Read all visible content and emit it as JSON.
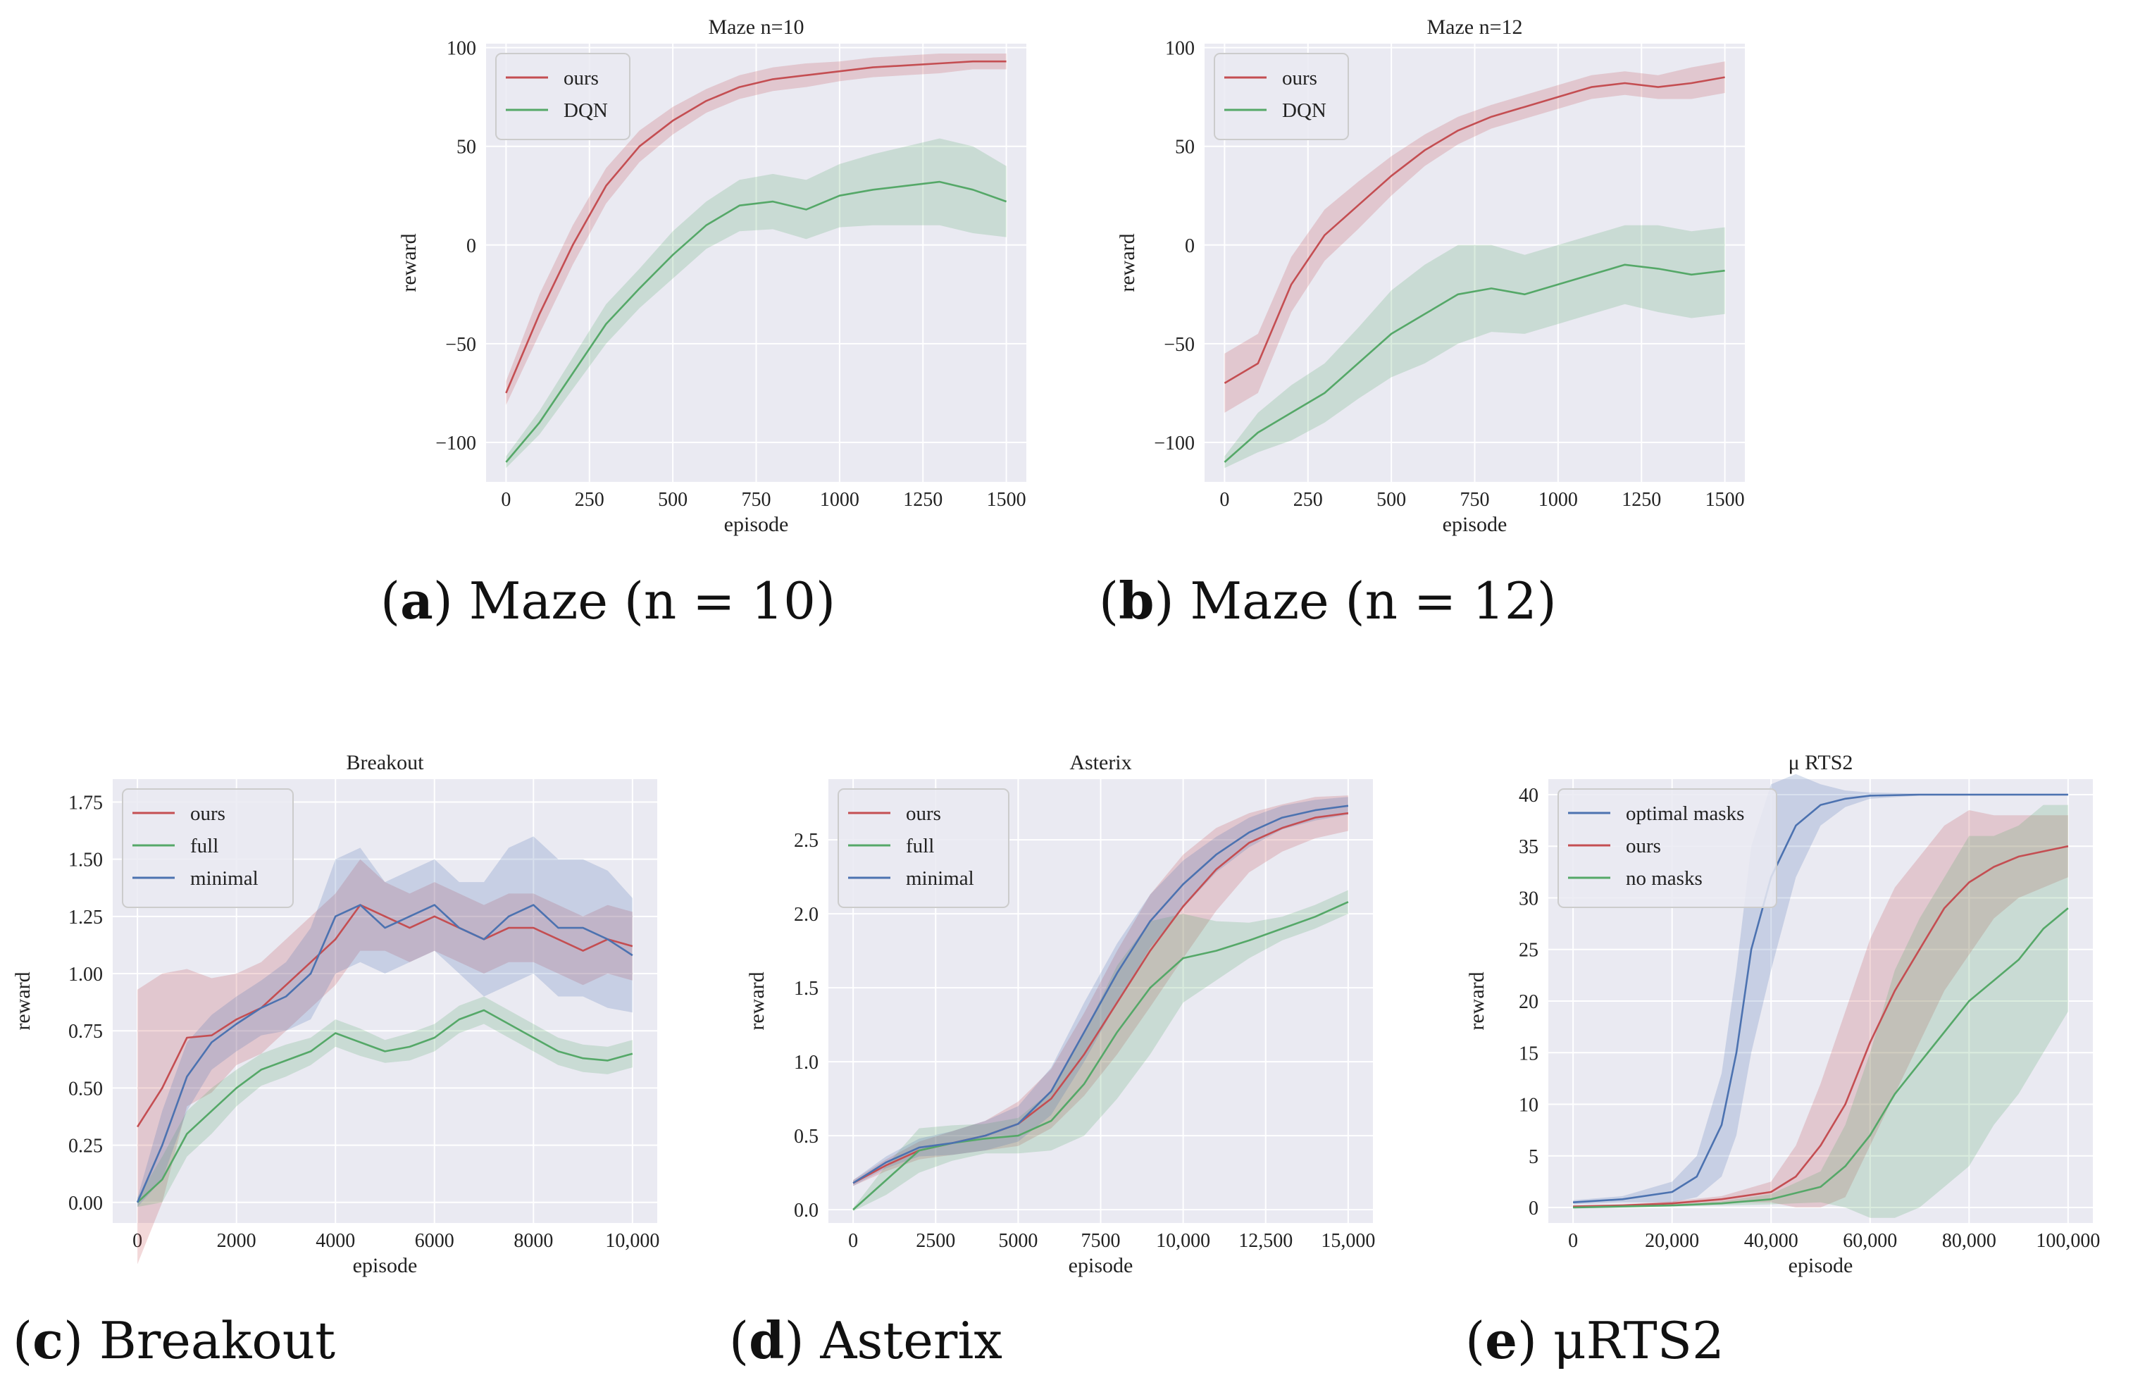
{
  "figure": {
    "captions": [
      {
        "letter": "a",
        "text": "Maze (n = 10)"
      },
      {
        "letter": "b",
        "text": "Maze (n = 12)"
      },
      {
        "letter": "c",
        "text": "Breakout"
      },
      {
        "letter": "d",
        "text": "Asterix"
      },
      {
        "letter": "e",
        "text": "μRTS2"
      }
    ]
  },
  "colors": {
    "red": "#c44e52",
    "green": "#55a868",
    "blue": "#4c72b0",
    "plot_bg": "#eaeaf2",
    "grid": "#ffffff"
  },
  "chart_data": [
    {
      "type": "line",
      "title": "Maze  n=10",
      "xlabel": "episode",
      "ylabel": "reward",
      "xlim": [
        -60,
        1560
      ],
      "ylim": [
        -120,
        102
      ],
      "xticks": [
        0,
        250,
        500,
        750,
        1000,
        1250,
        1500
      ],
      "xtick_labels": [
        "0",
        "250",
        "500",
        "750",
        "1000",
        "1250",
        "1500"
      ],
      "yticks": [
        -100,
        -50,
        0,
        50,
        100
      ],
      "ytick_labels": [
        "−100",
        "−50",
        "0",
        "50",
        "100"
      ],
      "legend": "top-left",
      "series": [
        {
          "name": "ours",
          "color": "red",
          "x": [
            0,
            100,
            200,
            300,
            400,
            500,
            600,
            700,
            800,
            900,
            1000,
            1100,
            1200,
            1300,
            1400,
            1500
          ],
          "values": [
            -75,
            -35,
            0,
            30,
            50,
            63,
            73,
            80,
            84,
            86,
            88,
            90,
            91,
            92,
            93,
            93
          ],
          "band": [
            6,
            10,
            10,
            9,
            8,
            7,
            6,
            6,
            6,
            6,
            5,
            5,
            5,
            5,
            4,
            4
          ]
        },
        {
          "name": "DQN",
          "color": "green",
          "x": [
            0,
            100,
            200,
            300,
            400,
            500,
            600,
            700,
            800,
            900,
            1000,
            1100,
            1200,
            1300,
            1400,
            1500
          ],
          "values": [
            -110,
            -90,
            -65,
            -40,
            -22,
            -5,
            10,
            20,
            22,
            18,
            25,
            28,
            30,
            32,
            28,
            22
          ],
          "band": [
            3,
            6,
            8,
            10,
            10,
            12,
            12,
            13,
            14,
            15,
            16,
            18,
            20,
            22,
            22,
            18
          ]
        }
      ]
    },
    {
      "type": "line",
      "title": "Maze  n=12",
      "xlabel": "episode",
      "ylabel": "reward",
      "xlim": [
        -60,
        1560
      ],
      "ylim": [
        -120,
        102
      ],
      "xticks": [
        0,
        250,
        500,
        750,
        1000,
        1250,
        1500
      ],
      "xtick_labels": [
        "0",
        "250",
        "500",
        "750",
        "1000",
        "1250",
        "1500"
      ],
      "yticks": [
        -100,
        -50,
        0,
        50,
        100
      ],
      "ytick_labels": [
        "−100",
        "−50",
        "0",
        "50",
        "100"
      ],
      "legend": "top-left",
      "series": [
        {
          "name": "ours",
          "color": "red",
          "x": [
            0,
            100,
            200,
            300,
            400,
            500,
            600,
            700,
            800,
            900,
            1000,
            1100,
            1200,
            1300,
            1400,
            1500
          ],
          "values": [
            -70,
            -60,
            -20,
            5,
            20,
            35,
            48,
            58,
            65,
            70,
            75,
            80,
            82,
            80,
            82,
            85
          ],
          "band": [
            15,
            15,
            14,
            13,
            12,
            10,
            8,
            7,
            6,
            6,
            6,
            6,
            6,
            6,
            8,
            8
          ]
        },
        {
          "name": "DQN",
          "color": "green",
          "x": [
            0,
            100,
            200,
            300,
            400,
            500,
            600,
            700,
            800,
            900,
            1000,
            1100,
            1200,
            1300,
            1400,
            1500
          ],
          "values": [
            -110,
            -95,
            -85,
            -75,
            -60,
            -45,
            -35,
            -25,
            -22,
            -25,
            -20,
            -15,
            -10,
            -12,
            -15,
            -13
          ],
          "band": [
            3,
            10,
            14,
            15,
            18,
            22,
            25,
            25,
            22,
            20,
            20,
            20,
            20,
            22,
            22,
            22
          ]
        }
      ]
    },
    {
      "type": "line",
      "title": "Breakout",
      "xlabel": "episode",
      "ylabel": "reward",
      "xlim": [
        -500,
        10500
      ],
      "ylim": [
        -0.09,
        1.85
      ],
      "xticks": [
        0,
        2000,
        4000,
        6000,
        8000,
        10000
      ],
      "xtick_labels": [
        "0",
        "2000",
        "4000",
        "6000",
        "8000",
        "10,000"
      ],
      "yticks": [
        0,
        0.25,
        0.5,
        0.75,
        1.0,
        1.25,
        1.5,
        1.75
      ],
      "ytick_labels": [
        "0.00",
        "0.25",
        "0.50",
        "0.75",
        "1.00",
        "1.25",
        "1.50",
        "1.75"
      ],
      "legend": "top-left",
      "series": [
        {
          "name": "ours",
          "color": "red",
          "x": [
            0,
            500,
            1000,
            1500,
            2000,
            2500,
            3000,
            3500,
            4000,
            4500,
            5000,
            5500,
            6000,
            6500,
            7000,
            7500,
            8000,
            8500,
            9000,
            9500,
            10000
          ],
          "values": [
            0.33,
            0.5,
            0.72,
            0.73,
            0.8,
            0.85,
            0.95,
            1.05,
            1.15,
            1.3,
            1.25,
            1.2,
            1.25,
            1.2,
            1.15,
            1.2,
            1.2,
            1.15,
            1.1,
            1.15,
            1.12
          ],
          "band": [
            0.6,
            0.5,
            0.3,
            0.25,
            0.2,
            0.2,
            0.2,
            0.2,
            0.2,
            0.2,
            0.15,
            0.15,
            0.15,
            0.15,
            0.15,
            0.15,
            0.15,
            0.15,
            0.15,
            0.15,
            0.15
          ]
        },
        {
          "name": "full",
          "color": "green",
          "x": [
            0,
            500,
            1000,
            1500,
            2000,
            2500,
            3000,
            3500,
            4000,
            4500,
            5000,
            5500,
            6000,
            6500,
            7000,
            7500,
            8000,
            8500,
            9000,
            9500,
            10000
          ],
          "values": [
            0.0,
            0.1,
            0.3,
            0.4,
            0.5,
            0.58,
            0.62,
            0.66,
            0.74,
            0.7,
            0.66,
            0.68,
            0.72,
            0.8,
            0.84,
            0.78,
            0.72,
            0.66,
            0.63,
            0.62,
            0.65
          ],
          "band": [
            0.02,
            0.1,
            0.1,
            0.1,
            0.08,
            0.07,
            0.07,
            0.06,
            0.06,
            0.06,
            0.05,
            0.06,
            0.06,
            0.06,
            0.06,
            0.06,
            0.06,
            0.06,
            0.06,
            0.06,
            0.06
          ]
        },
        {
          "name": "minimal",
          "color": "blue",
          "x": [
            0,
            500,
            1000,
            1500,
            2000,
            2500,
            3000,
            3500,
            4000,
            4500,
            5000,
            5500,
            6000,
            6500,
            7000,
            7500,
            8000,
            8500,
            9000,
            9500,
            10000
          ],
          "values": [
            0.0,
            0.25,
            0.55,
            0.7,
            0.78,
            0.85,
            0.9,
            1.0,
            1.25,
            1.3,
            1.2,
            1.25,
            1.3,
            1.2,
            1.15,
            1.25,
            1.3,
            1.2,
            1.2,
            1.15,
            1.08
          ],
          "band": [
            0.02,
            0.15,
            0.15,
            0.12,
            0.12,
            0.12,
            0.15,
            0.2,
            0.25,
            0.25,
            0.2,
            0.2,
            0.2,
            0.2,
            0.25,
            0.3,
            0.3,
            0.3,
            0.3,
            0.3,
            0.25
          ]
        }
      ]
    },
    {
      "type": "line",
      "title": "Asterix",
      "xlabel": "episode",
      "ylabel": "reward",
      "xlim": [
        -750,
        15750
      ],
      "ylim": [
        -0.09,
        2.91
      ],
      "xticks": [
        0,
        2500,
        5000,
        7500,
        10000,
        12500,
        15000
      ],
      "xtick_labels": [
        "0",
        "2500",
        "5000",
        "7500",
        "10,000",
        "12,500",
        "15,000"
      ],
      "yticks": [
        0,
        0.5,
        1.0,
        1.5,
        2.0,
        2.5
      ],
      "ytick_labels": [
        "0.0",
        "0.5",
        "1.0",
        "1.5",
        "2.0",
        "2.5"
      ],
      "legend": "top-left",
      "series": [
        {
          "name": "ours",
          "color": "red",
          "x": [
            0,
            1000,
            2000,
            3000,
            4000,
            5000,
            6000,
            7000,
            8000,
            9000,
            10000,
            11000,
            12000,
            13000,
            14000,
            15000
          ],
          "values": [
            0.18,
            0.3,
            0.4,
            0.45,
            0.5,
            0.58,
            0.75,
            1.05,
            1.4,
            1.75,
            2.05,
            2.3,
            2.48,
            2.58,
            2.65,
            2.68
          ],
          "band": [
            0.02,
            0.04,
            0.06,
            0.08,
            0.1,
            0.15,
            0.2,
            0.28,
            0.35,
            0.38,
            0.35,
            0.28,
            0.2,
            0.16,
            0.14,
            0.12
          ]
        },
        {
          "name": "full",
          "color": "green",
          "x": [
            0,
            1000,
            2000,
            3000,
            4000,
            5000,
            6000,
            7000,
            8000,
            9000,
            10000,
            11000,
            12000,
            13000,
            14000,
            15000
          ],
          "values": [
            0.0,
            0.2,
            0.4,
            0.45,
            0.48,
            0.5,
            0.6,
            0.85,
            1.2,
            1.5,
            1.7,
            1.75,
            1.82,
            1.9,
            1.98,
            2.08
          ],
          "band": [
            0.01,
            0.1,
            0.15,
            0.12,
            0.1,
            0.12,
            0.2,
            0.35,
            0.45,
            0.45,
            0.3,
            0.2,
            0.12,
            0.08,
            0.08,
            0.08
          ]
        },
        {
          "name": "minimal",
          "color": "blue",
          "x": [
            0,
            1000,
            2000,
            3000,
            4000,
            5000,
            6000,
            7000,
            8000,
            9000,
            10000,
            11000,
            12000,
            13000,
            14000,
            15000
          ],
          "values": [
            0.18,
            0.32,
            0.42,
            0.45,
            0.5,
            0.58,
            0.8,
            1.2,
            1.6,
            1.95,
            2.2,
            2.4,
            2.55,
            2.65,
            2.7,
            2.73
          ],
          "band": [
            0.02,
            0.04,
            0.06,
            0.08,
            0.1,
            0.12,
            0.16,
            0.2,
            0.2,
            0.18,
            0.16,
            0.12,
            0.1,
            0.08,
            0.07,
            0.06
          ]
        }
      ]
    },
    {
      "type": "line",
      "title": "μ RTS2",
      "xlabel": "episode",
      "ylabel": "reward",
      "xlim": [
        -5000,
        105000
      ],
      "ylim": [
        -1.5,
        41.5
      ],
      "xticks": [
        0,
        20000,
        40000,
        60000,
        80000,
        100000
      ],
      "xtick_labels": [
        "0",
        "20,000",
        "40,000",
        "60,000",
        "80,000",
        "100,000"
      ],
      "yticks": [
        0,
        5,
        10,
        15,
        20,
        25,
        30,
        35,
        40
      ],
      "ytick_labels": [
        "0",
        "5",
        "10",
        "15",
        "20",
        "25",
        "30",
        "35",
        "40"
      ],
      "legend": "top-left",
      "series": [
        {
          "name": "optimal masks",
          "color": "blue",
          "x": [
            0,
            10000,
            20000,
            25000,
            30000,
            33000,
            36000,
            40000,
            45000,
            50000,
            55000,
            60000,
            70000,
            80000,
            90000,
            100000
          ],
          "values": [
            0.5,
            0.8,
            1.5,
            3,
            8,
            15,
            25,
            32,
            37,
            39,
            39.6,
            39.9,
            40,
            40,
            40,
            40
          ],
          "band": [
            0.2,
            0.3,
            1,
            2,
            5,
            8,
            10,
            9,
            5,
            2,
            0.8,
            0.3,
            0.1,
            0.1,
            0.1,
            0.1
          ]
        },
        {
          "name": "ours",
          "color": "red",
          "x": [
            0,
            10000,
            20000,
            30000,
            40000,
            45000,
            50000,
            55000,
            60000,
            65000,
            70000,
            75000,
            80000,
            85000,
            90000,
            100000
          ],
          "values": [
            0.1,
            0.2,
            0.4,
            0.8,
            1.5,
            3,
            6,
            10,
            16,
            21,
            25,
            29,
            31.5,
            33,
            34,
            35
          ],
          "band": [
            0.1,
            0.1,
            0.2,
            0.3,
            1,
            3,
            6,
            9,
            10,
            10,
            9,
            8,
            7,
            5,
            4,
            3
          ]
        },
        {
          "name": "no masks",
          "color": "green",
          "x": [
            0,
            10000,
            20000,
            30000,
            40000,
            50000,
            55000,
            60000,
            65000,
            70000,
            75000,
            80000,
            85000,
            90000,
            95000,
            100000
          ],
          "values": [
            0.0,
            0.1,
            0.2,
            0.4,
            0.8,
            2,
            4,
            7,
            11,
            14,
            17,
            20,
            22,
            24,
            27,
            29
          ],
          "band": [
            0.1,
            0.1,
            0.1,
            0.2,
            0.5,
            1.5,
            4,
            8,
            12,
            14,
            15,
            16,
            14,
            13,
            12,
            10
          ]
        }
      ]
    }
  ]
}
